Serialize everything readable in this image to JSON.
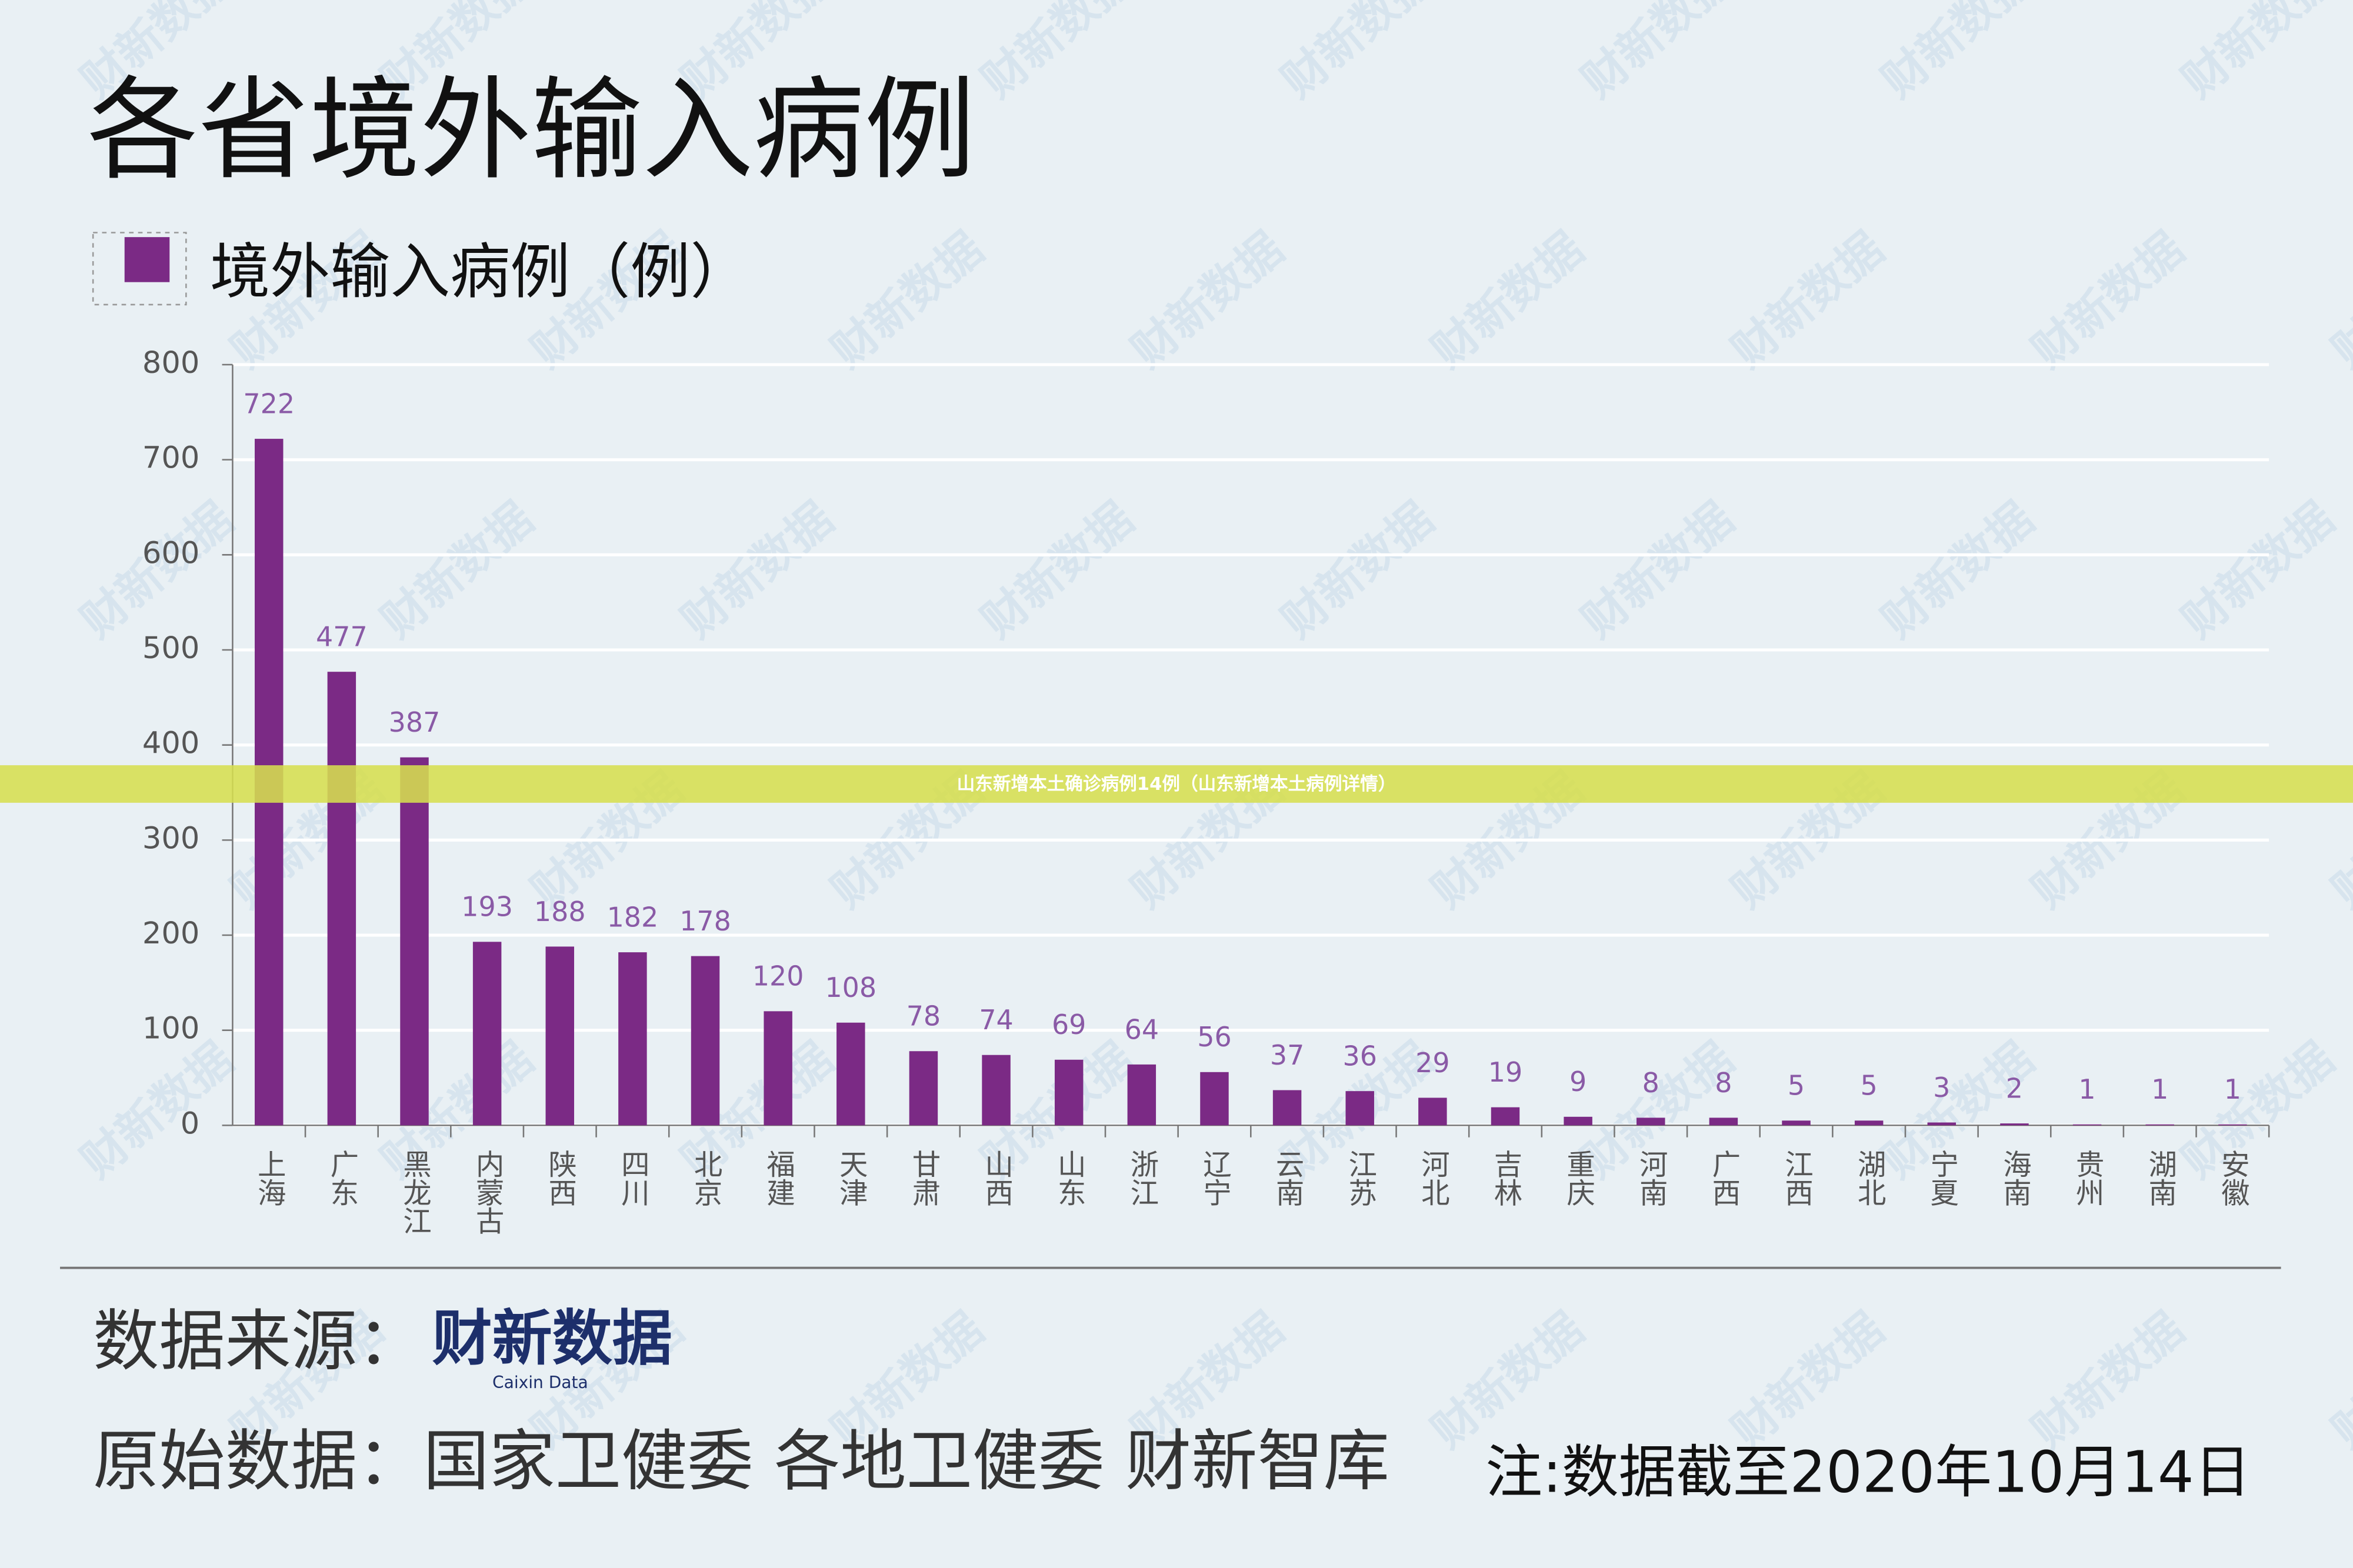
{
  "chart_data": {
    "type": "bar",
    "title": "各省境外输入病例",
    "categories": [
      "上海",
      "广东",
      "黑龙江",
      "内蒙古",
      "陕西",
      "四川",
      "北京",
      "福建",
      "天津",
      "甘肃",
      "山西",
      "山东",
      "浙江",
      "辽宁",
      "云南",
      "江苏",
      "河北",
      "吉林",
      "重庆",
      "河南",
      "广西",
      "江西",
      "湖北",
      "宁夏",
      "海南",
      "贵州",
      "湖南",
      "安徽"
    ],
    "series": [
      {
        "name": "境外输入病例（例）",
        "color": "#7b2a85",
        "values": [
          722,
          477,
          387,
          193,
          188,
          182,
          178,
          120,
          108,
          78,
          74,
          69,
          64,
          56,
          37,
          36,
          29,
          19,
          9,
          8,
          8,
          5,
          5,
          3,
          2,
          1,
          1,
          1
        ]
      }
    ],
    "ylim": [
      0,
      800
    ],
    "yticks": [
      0,
      100,
      200,
      300,
      400,
      500,
      600,
      700,
      800
    ],
    "grid": true
  },
  "banner": "山东新增本土确诊病例14例（山东新增本土病例详情）",
  "watermark": "财新数据",
  "source_label": "数据来源：",
  "source_logo": "财新数据",
  "source_logo_sub": "Caixin Data",
  "raw_data": "原始数据：国家卫健委 各地卫健委 财新智库",
  "note": "注:数据截至2020年10月14日"
}
